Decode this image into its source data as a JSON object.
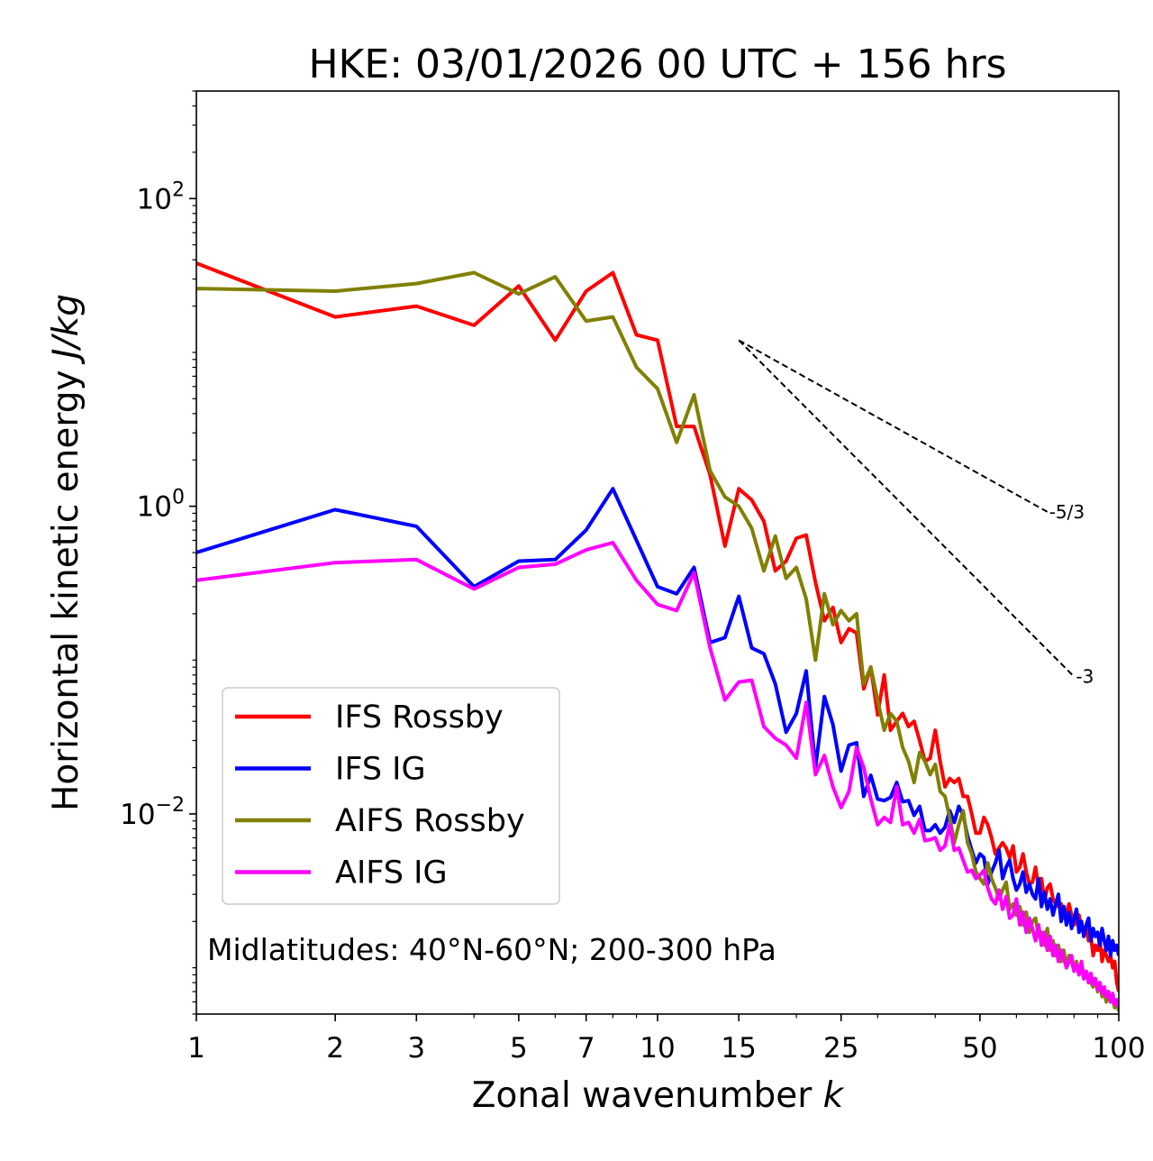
{
  "chart_data": {
    "type": "line",
    "title": "HKE: 03/01/2026 00 UTC + 156 hrs",
    "xlabel_text": "Zonal wavenumber ",
    "xlabel_var": "k",
    "ylabel_text": "Horizontal kinetic energy ",
    "ylabel_unit": "J/kg",
    "xscale": "log",
    "yscale": "log",
    "xlim": [
      1,
      100
    ],
    "ylim": [
      0.0005,
      500
    ],
    "xticks": [
      {
        "value": 1,
        "label": "1"
      },
      {
        "value": 2,
        "label": "2"
      },
      {
        "value": 3,
        "label": "3"
      },
      {
        "value": 5,
        "label": "5"
      },
      {
        "value": 7,
        "label": "7"
      },
      {
        "value": 10,
        "label": "10"
      },
      {
        "value": 15,
        "label": "15"
      },
      {
        "value": 25,
        "label": "25"
      },
      {
        "value": 50,
        "label": "50"
      },
      {
        "value": 100,
        "label": "100"
      }
    ],
    "yticks": [
      {
        "value": 100,
        "base": "10",
        "exp": "2"
      },
      {
        "value": 1,
        "base": "10",
        "exp": "0"
      },
      {
        "value": 0.01,
        "base": "10",
        "exp": "−2"
      }
    ],
    "annotation": "Midlatitudes: 40°N-60°N; 200-300 hPa",
    "legend_position": "lower-left",
    "reference_slopes": [
      {
        "label": "-5/3",
        "k": [
          15,
          70
        ],
        "E": [
          12,
          0.92
        ]
      },
      {
        "label": "-3",
        "k": [
          15,
          80
        ],
        "E": [
          12,
          0.078
        ]
      }
    ],
    "series": [
      {
        "name": "IFS Rossby",
        "color": "#ff0000",
        "values": [
          38,
          17,
          20,
          15,
          27,
          12,
          25,
          33,
          13,
          12,
          3.3,
          3.3,
          1.6,
          0.55,
          1.3,
          1.1,
          0.8,
          0.38,
          0.44,
          0.62,
          0.65,
          0.32,
          0.18,
          0.22,
          0.13,
          0.16,
          0.15,
          0.065,
          0.09,
          0.044,
          0.08,
          0.035,
          0.04,
          0.045,
          0.037,
          0.04,
          0.03,
          0.022,
          0.023,
          0.035,
          0.022,
          0.015,
          0.017,
          0.016,
          0.017,
          0.013,
          0.013,
          0.01,
          0.0075,
          0.0075,
          0.0095,
          0.0085,
          0.007,
          0.0055,
          0.006,
          0.0065,
          0.006,
          0.0052,
          0.0062,
          0.0042,
          0.0045,
          0.0055,
          0.0042,
          0.0035,
          0.0036,
          0.0045,
          0.0033,
          0.0038,
          0.0027,
          0.0033,
          0.0035,
          0.0028,
          0.0026,
          0.0025,
          0.0026,
          0.0021,
          0.0023,
          0.0026,
          0.0022,
          0.0019,
          0.002,
          0.0022,
          0.0018,
          0.0017,
          0.0018,
          0.0015,
          0.0016,
          0.0012,
          0.0014,
          0.0013,
          0.0015,
          0.0011,
          0.0013,
          0.0012,
          0.0011,
          0.0012,
          0.001,
          0.0011,
          0.0008,
          0.0007
        ]
      },
      {
        "name": "IFS IG",
        "color": "#0000ff",
        "values": [
          0.5,
          0.95,
          0.74,
          0.3,
          0.44,
          0.45,
          0.7,
          1.3,
          0.6,
          0.3,
          0.27,
          0.4,
          0.13,
          0.14,
          0.26,
          0.12,
          0.11,
          0.07,
          0.034,
          0.045,
          0.085,
          0.02,
          0.058,
          0.038,
          0.019,
          0.028,
          0.029,
          0.013,
          0.0178,
          0.0125,
          0.0122,
          0.0128,
          0.016,
          0.012,
          0.0122,
          0.0098,
          0.0112,
          0.0078,
          0.0078,
          0.0085,
          0.0075,
          0.0082,
          0.0105,
          0.0088,
          0.0112,
          0.0098,
          0.0072,
          0.0058,
          0.0048,
          0.0055,
          0.0052,
          0.0035,
          0.0042,
          0.0048,
          0.0058,
          0.0038,
          0.0045,
          0.005,
          0.0038,
          0.0032,
          0.0035,
          0.0042,
          0.0031,
          0.0035,
          0.003,
          0.0028,
          0.0038,
          0.0025,
          0.0031,
          0.0024,
          0.0028,
          0.0022,
          0.0026,
          0.003,
          0.002,
          0.0025,
          0.0019,
          0.0023,
          0.0018,
          0.0021,
          0.0024,
          0.0017,
          0.002,
          0.0016,
          0.0019,
          0.0021,
          0.0015,
          0.0018,
          0.0016,
          0.0017,
          0.0014,
          0.0018,
          0.0015,
          0.0013,
          0.0016,
          0.0012,
          0.0015,
          0.0013,
          0.0014,
          0.0012
        ]
      },
      {
        "name": "AIFS Rossby",
        "color": "#808000",
        "values": [
          26,
          25,
          28,
          33,
          24,
          31,
          16,
          17,
          8,
          5.8,
          2.6,
          5.3,
          1.7,
          1.15,
          1.0,
          0.72,
          0.38,
          0.64,
          0.34,
          0.4,
          0.25,
          0.1,
          0.27,
          0.17,
          0.21,
          0.18,
          0.2,
          0.07,
          0.09,
          0.055,
          0.035,
          0.045,
          0.04,
          0.027,
          0.022,
          0.016,
          0.025,
          0.022,
          0.018,
          0.021,
          0.014,
          0.013,
          0.0095,
          0.0065,
          0.0085,
          0.0105,
          0.0065,
          0.0055,
          0.0042,
          0.0038,
          0.0035,
          0.0048,
          0.0038,
          0.0033,
          0.0028,
          0.0032,
          0.0036,
          0.0024,
          0.0026,
          0.0022,
          0.0025,
          0.0019,
          0.0023,
          0.0017,
          0.002,
          0.0021,
          0.0016,
          0.0017,
          0.0014,
          0.0018,
          0.0013,
          0.0015,
          0.0012,
          0.0014,
          0.0011,
          0.0013,
          0.001,
          0.0012,
          0.0011,
          0.00095,
          0.0011,
          0.00092,
          0.001,
          0.00085,
          0.00088,
          0.0009,
          0.0008,
          0.00075,
          0.00085,
          0.0007,
          0.0008,
          0.00065,
          0.0007,
          0.0006,
          0.00068,
          0.0006,
          0.00062,
          0.00055,
          0.0006,
          0.00052
        ]
      },
      {
        "name": "AIFS IG",
        "color": "#ff00ff",
        "values": [
          0.33,
          0.43,
          0.45,
          0.29,
          0.4,
          0.42,
          0.52,
          0.58,
          0.33,
          0.23,
          0.21,
          0.37,
          0.12,
          0.055,
          0.072,
          0.074,
          0.037,
          0.031,
          0.028,
          0.023,
          0.053,
          0.018,
          0.024,
          0.015,
          0.011,
          0.014,
          0.027,
          0.02,
          0.0125,
          0.0085,
          0.0095,
          0.0088,
          0.015,
          0.0085,
          0.0088,
          0.0075,
          0.0092,
          0.0067,
          0.0068,
          0.007,
          0.0058,
          0.0062,
          0.0085,
          0.0058,
          0.006,
          0.005,
          0.0042,
          0.0043,
          0.0038,
          0.004,
          0.0043,
          0.0033,
          0.0028,
          0.0026,
          0.0032,
          0.0024,
          0.0029,
          0.0021,
          0.0022,
          0.0028,
          0.0019,
          0.0023,
          0.0017,
          0.0021,
          0.0018,
          0.0015,
          0.0019,
          0.0014,
          0.0017,
          0.0013,
          0.0016,
          0.0012,
          0.0014,
          0.0011,
          0.0013,
          0.00115,
          0.001,
          0.0011,
          0.0012,
          0.00095,
          0.00105,
          0.0009,
          0.0011,
          0.00085,
          0.00095,
          0.0008,
          0.00092,
          0.00078,
          0.00085,
          0.00072,
          0.0008,
          0.00068,
          0.00075,
          0.00065,
          0.0007,
          0.0006,
          0.00068,
          0.00058,
          0.00062,
          0.00055
        ]
      }
    ]
  }
}
